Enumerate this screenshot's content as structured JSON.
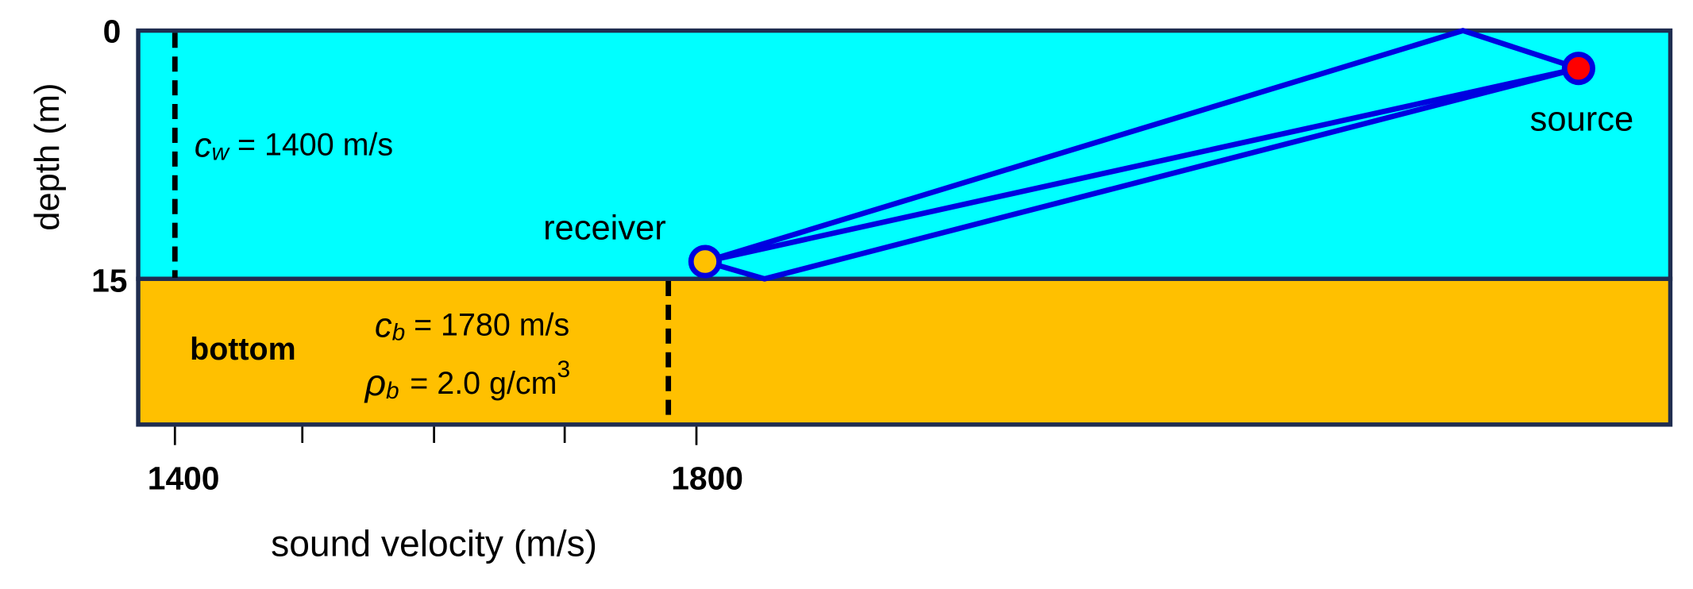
{
  "axes": {
    "y_title": "depth (m)",
    "y_ticks": [
      "0",
      "15"
    ],
    "x_title": "sound velocity (m/s)",
    "x_ticks": [
      "1400",
      "1800"
    ]
  },
  "water": {
    "symbol": "c",
    "subscript": "w",
    "text": "= 1400 m/s"
  },
  "bottom": {
    "label": "bottom",
    "velocity": {
      "symbol": "c",
      "subscript": "b",
      "text": "= 1780 m/s"
    },
    "density": {
      "symbol": "ρ",
      "subscript": "b",
      "text": "= 2.0 g/cm",
      "superscript": "3"
    }
  },
  "receiver": {
    "label": "receiver"
  },
  "source": {
    "label": "source"
  }
}
